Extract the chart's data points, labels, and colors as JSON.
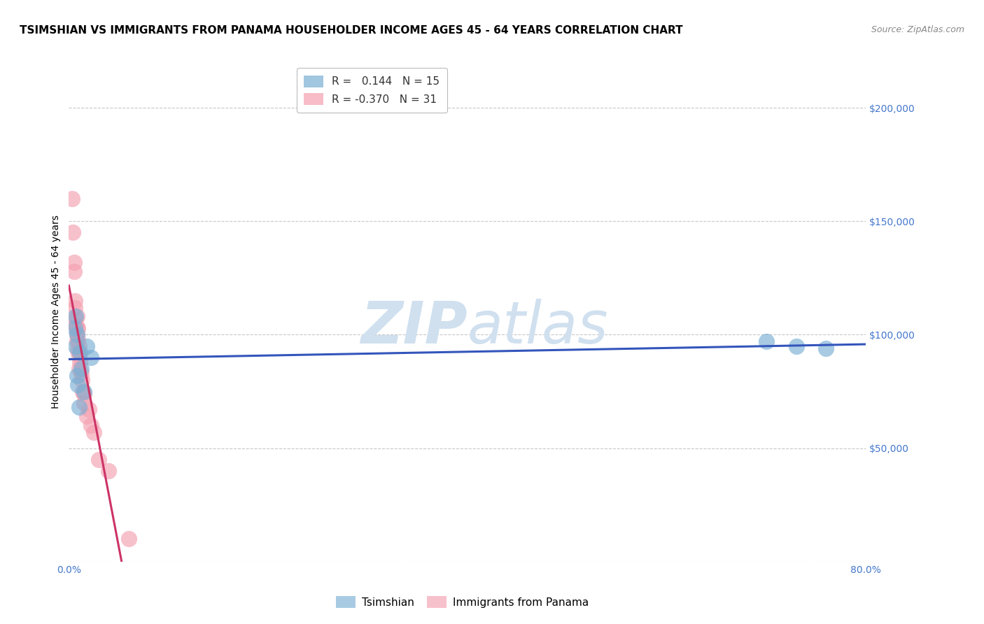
{
  "title": "TSIMSHIAN VS IMMIGRANTS FROM PANAMA HOUSEHOLDER INCOME AGES 45 - 64 YEARS CORRELATION CHART",
  "source": "Source: ZipAtlas.com",
  "ylabel": "Householder Income Ages 45 - 64 years",
  "xlim": [
    0.0,
    0.8
  ],
  "ylim": [
    0,
    220000
  ],
  "xticks": [
    0.0,
    0.1,
    0.2,
    0.3,
    0.4,
    0.5,
    0.6,
    0.7,
    0.8
  ],
  "xticklabels": [
    "0.0%",
    "",
    "",
    "",
    "",
    "",
    "",
    "",
    "80.0%"
  ],
  "ytick_positions": [
    0,
    50000,
    100000,
    150000,
    200000
  ],
  "ytick_labels": [
    "",
    "$50,000",
    "$100,000",
    "$150,000",
    "$200,000"
  ],
  "background_color": "#ffffff",
  "grid_color": "#c8c8c8",
  "watermark_zip": "ZIP",
  "watermark_atlas": "atlas",
  "watermark_color": "#d0e0ef",
  "tsimshian_color": "#7aafd4",
  "panama_color": "#f4a0b0",
  "tsimshian_x": [
    0.006,
    0.007,
    0.007,
    0.008,
    0.008,
    0.009,
    0.01,
    0.011,
    0.012,
    0.015,
    0.018,
    0.022,
    0.7,
    0.73,
    0.76
  ],
  "tsimshian_y": [
    103000,
    108000,
    95000,
    100000,
    82000,
    78000,
    68000,
    92000,
    85000,
    75000,
    95000,
    90000,
    97000,
    95000,
    94000
  ],
  "panama_x": [
    0.003,
    0.004,
    0.005,
    0.005,
    0.006,
    0.006,
    0.007,
    0.007,
    0.008,
    0.008,
    0.008,
    0.008,
    0.009,
    0.009,
    0.009,
    0.01,
    0.01,
    0.01,
    0.011,
    0.012,
    0.013,
    0.014,
    0.015,
    0.015,
    0.018,
    0.02,
    0.022,
    0.025,
    0.03,
    0.04,
    0.06
  ],
  "panama_y": [
    160000,
    145000,
    132000,
    128000,
    115000,
    112000,
    107000,
    104000,
    108000,
    103000,
    100000,
    97000,
    103000,
    98000,
    93000,
    95000,
    91000,
    85000,
    88000,
    83000,
    80000,
    75000,
    74000,
    70000,
    64000,
    67000,
    60000,
    57000,
    45000,
    40000,
    10000
  ],
  "tsimshian_R": 0.144,
  "tsimshian_N": 15,
  "panama_R": -0.37,
  "panama_N": 31,
  "blue_line_color": "#3355bb",
  "pink_line_solid_color": "#cc3366",
  "pink_line_dashed_color": "#ddaabb",
  "title_fontsize": 11,
  "source_fontsize": 9,
  "axis_label_fontsize": 10,
  "tick_fontsize": 10,
  "legend_fontsize": 11,
  "watermark_fontsize": 60
}
